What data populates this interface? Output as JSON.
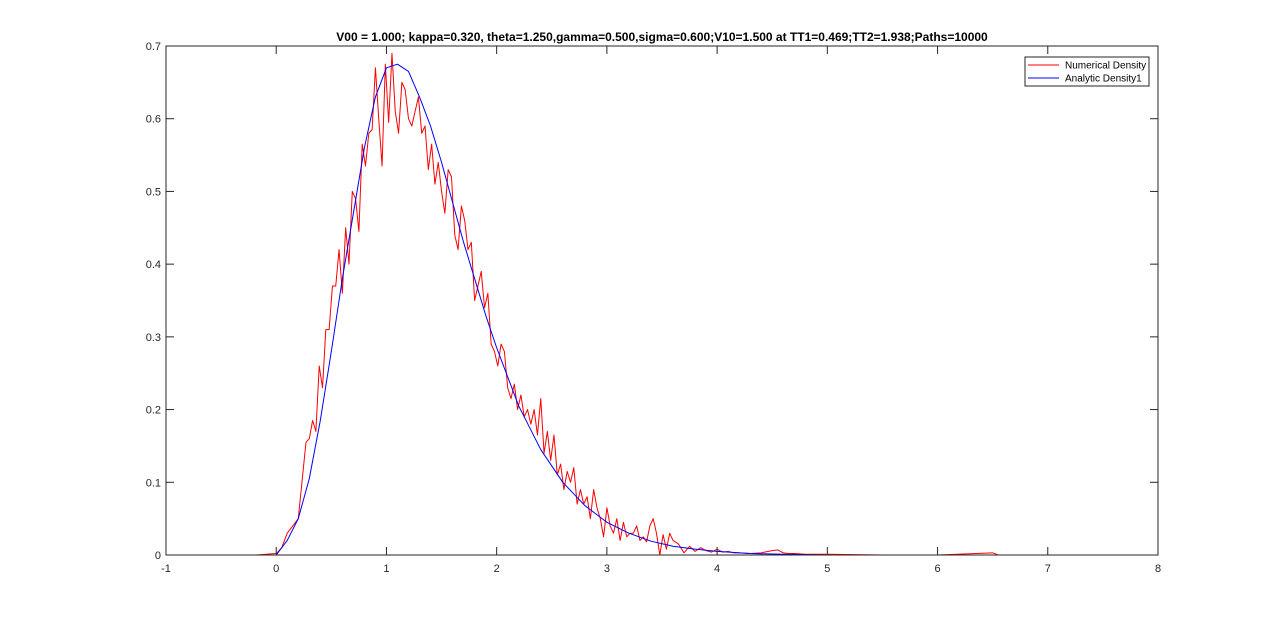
{
  "chart_data": {
    "type": "line",
    "title": "V00 = 1.000; kappa=0.320, theta=1.250,gamma=0.500,sigma=0.600;V10=1.500 at TT1=0.469;TT2=1.938;Paths=10000",
    "xlabel": "",
    "ylabel": "",
    "xlim": [
      -1,
      8
    ],
    "ylim": [
      0,
      0.7
    ],
    "xticks": [
      -1,
      0,
      1,
      2,
      3,
      4,
      5,
      6,
      7,
      8
    ],
    "yticks": [
      0,
      0.1,
      0.2,
      0.3,
      0.4,
      0.5,
      0.6,
      0.7
    ],
    "grid": false,
    "legend_position": "top-right",
    "series": [
      {
        "name": "Numerical Density",
        "color": "#ff0000",
        "x": [
          -0.18,
          0.0,
          0.05,
          0.1,
          0.15,
          0.2,
          0.24,
          0.27,
          0.3,
          0.33,
          0.36,
          0.39,
          0.42,
          0.45,
          0.48,
          0.51,
          0.54,
          0.57,
          0.6,
          0.63,
          0.66,
          0.69,
          0.72,
          0.75,
          0.78,
          0.81,
          0.84,
          0.87,
          0.9,
          0.93,
          0.96,
          0.99,
          1.02,
          1.05,
          1.08,
          1.11,
          1.14,
          1.17,
          1.2,
          1.23,
          1.26,
          1.29,
          1.32,
          1.35,
          1.38,
          1.41,
          1.44,
          1.47,
          1.5,
          1.53,
          1.56,
          1.59,
          1.62,
          1.65,
          1.68,
          1.71,
          1.74,
          1.77,
          1.8,
          1.83,
          1.86,
          1.89,
          1.92,
          1.95,
          1.98,
          2.01,
          2.04,
          2.07,
          2.1,
          2.13,
          2.16,
          2.19,
          2.22,
          2.25,
          2.28,
          2.31,
          2.34,
          2.37,
          2.4,
          2.43,
          2.46,
          2.49,
          2.52,
          2.55,
          2.58,
          2.61,
          2.64,
          2.67,
          2.7,
          2.73,
          2.76,
          2.79,
          2.82,
          2.85,
          2.88,
          2.91,
          2.94,
          2.97,
          3.0,
          3.03,
          3.06,
          3.09,
          3.12,
          3.15,
          3.18,
          3.21,
          3.24,
          3.27,
          3.3,
          3.33,
          3.36,
          3.39,
          3.42,
          3.45,
          3.48,
          3.51,
          3.54,
          3.57,
          3.6,
          3.65,
          3.7,
          3.75,
          3.8,
          3.85,
          3.9,
          3.95,
          4.0,
          4.05,
          4.1,
          4.15,
          4.2,
          4.3,
          4.4,
          4.5,
          4.55,
          4.6,
          4.65,
          4.7,
          4.8,
          5.0,
          5.5,
          6.0,
          6.5,
          6.55,
          7.0,
          7.35
        ],
        "y": [
          0.0,
          0.002,
          0.01,
          0.03,
          0.04,
          0.05,
          0.11,
          0.155,
          0.16,
          0.185,
          0.17,
          0.26,
          0.23,
          0.31,
          0.31,
          0.37,
          0.37,
          0.42,
          0.36,
          0.45,
          0.4,
          0.5,
          0.49,
          0.445,
          0.565,
          0.535,
          0.58,
          0.585,
          0.67,
          0.6,
          0.535,
          0.675,
          0.595,
          0.69,
          0.61,
          0.58,
          0.65,
          0.64,
          0.6,
          0.59,
          0.61,
          0.63,
          0.58,
          0.59,
          0.53,
          0.565,
          0.51,
          0.54,
          0.5,
          0.47,
          0.53,
          0.52,
          0.44,
          0.42,
          0.48,
          0.46,
          0.42,
          0.43,
          0.35,
          0.37,
          0.39,
          0.34,
          0.36,
          0.29,
          0.28,
          0.26,
          0.29,
          0.28,
          0.23,
          0.215,
          0.235,
          0.2,
          0.22,
          0.19,
          0.2,
          0.18,
          0.2,
          0.165,
          0.215,
          0.14,
          0.17,
          0.13,
          0.165,
          0.11,
          0.125,
          0.09,
          0.115,
          0.1,
          0.12,
          0.07,
          0.09,
          0.07,
          0.08,
          0.05,
          0.09,
          0.065,
          0.05,
          0.025,
          0.065,
          0.04,
          0.03,
          0.05,
          0.02,
          0.045,
          0.025,
          0.03,
          0.03,
          0.04,
          0.02,
          0.025,
          0.018,
          0.04,
          0.05,
          0.03,
          0.0,
          0.028,
          0.008,
          0.03,
          0.02,
          0.015,
          0.003,
          0.012,
          0.005,
          0.01,
          0.006,
          0.004,
          0.008,
          0.004,
          0.005,
          0.003,
          0.003,
          0.002,
          0.003,
          0.006,
          0.007,
          0.003,
          0.002,
          0.002,
          0.001,
          0.001,
          0.0,
          0.0,
          0.003,
          0.0,
          0.0,
          0.0
        ]
      },
      {
        "name": "Analytic Density1",
        "color": "#0000ff",
        "x": [
          -0.18,
          0.0,
          0.1,
          0.2,
          0.3,
          0.4,
          0.5,
          0.6,
          0.7,
          0.8,
          0.9,
          1.0,
          1.1,
          1.2,
          1.3,
          1.4,
          1.5,
          1.6,
          1.7,
          1.8,
          1.9,
          2.0,
          2.2,
          2.4,
          2.6,
          2.8,
          3.0,
          3.2,
          3.4,
          3.6,
          3.8,
          4.0,
          4.3,
          4.6,
          5.0,
          5.5,
          6.0,
          7.35
        ],
        "y": [
          0.0,
          0.0,
          0.02,
          0.05,
          0.105,
          0.185,
          0.28,
          0.38,
          0.47,
          0.56,
          0.63,
          0.67,
          0.675,
          0.665,
          0.63,
          0.59,
          0.54,
          0.485,
          0.43,
          0.38,
          0.33,
          0.285,
          0.205,
          0.145,
          0.1,
          0.068,
          0.045,
          0.03,
          0.019,
          0.012,
          0.008,
          0.005,
          0.002,
          0.001,
          0.0,
          0.0,
          0.0,
          0.0
        ]
      }
    ]
  }
}
